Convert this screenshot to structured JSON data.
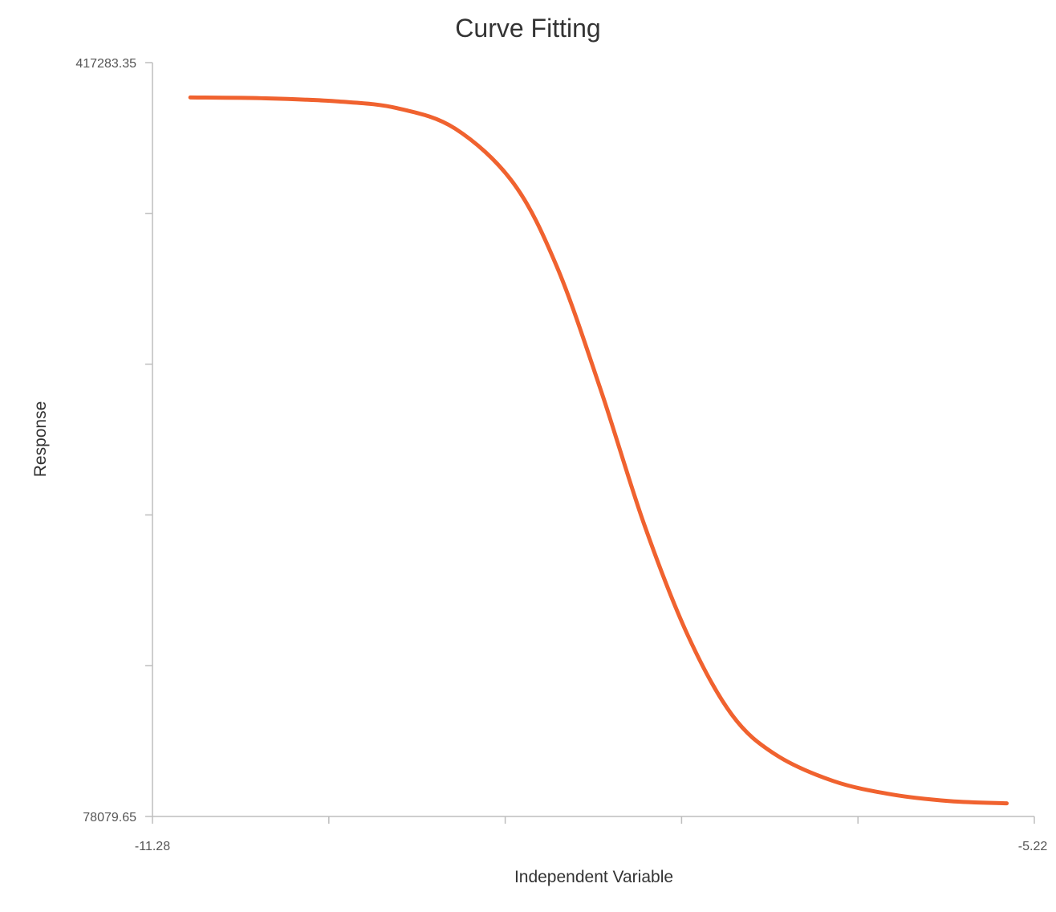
{
  "chart_data": {
    "type": "line",
    "title": "Curve Fitting",
    "xlabel": "Independent Variable",
    "ylabel": "Response",
    "xlim": [
      -11.28,
      -5.22
    ],
    "ylim": [
      78079.65,
      417283.35
    ],
    "x_tick_labels": [
      "-11.28",
      "-5.22"
    ],
    "y_tick_labels": [
      "417283.35",
      "78079.65"
    ],
    "x_tick_count": 6,
    "y_tick_count": 6,
    "grid": false,
    "legend": "none",
    "series": [
      {
        "color": "#f0622f",
        "x": [
          -11.02,
          -10.5,
          -10.0,
          -9.6,
          -9.2,
          -8.8,
          -8.5,
          -8.2,
          -7.9,
          -7.6,
          -7.3,
          -7.0,
          -6.6,
          -6.2,
          -5.8,
          -5.41
        ],
        "values": [
          401600,
          401200,
          399800,
          396800,
          387600,
          363100,
          325300,
          270100,
          209300,
          159400,
          124000,
          106000,
          94000,
          88000,
          85000,
          84000
        ]
      }
    ]
  }
}
